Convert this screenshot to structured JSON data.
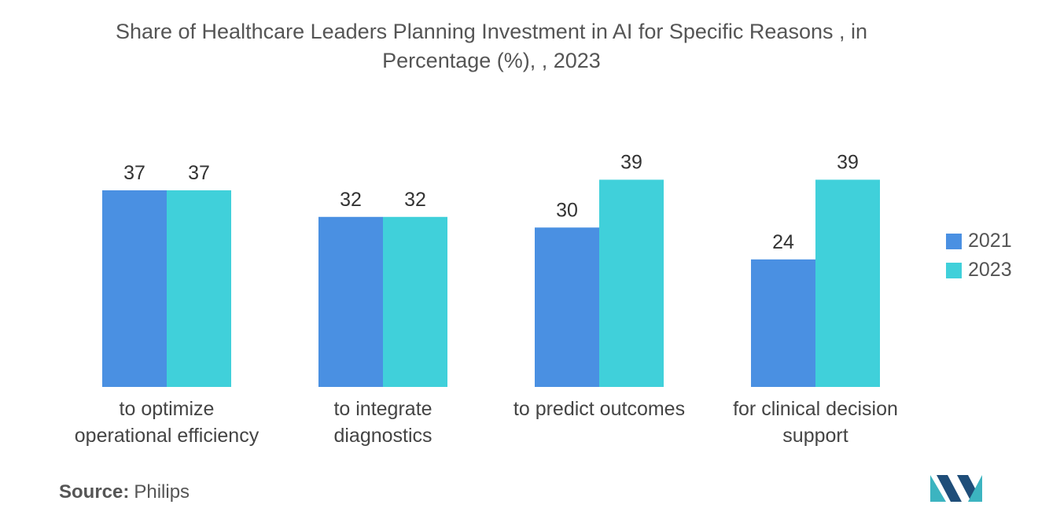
{
  "title_lines": [
    "Share of Healthcare Leaders Planning Investment in AI for Specific Reasons , in",
    "Percentage (%), , 2023"
  ],
  "source": {
    "label": "Source:",
    "value": "Philips"
  },
  "colors": {
    "s2021": "#4a90e2",
    "s2023": "#40d0da",
    "text": "#555555",
    "logo_dark": "#1f4e79",
    "logo_light": "#3cb4c0"
  },
  "logo_icon": "mordor-logo-icon",
  "chart_data": {
    "type": "bar",
    "title": "Share of Healthcare Leaders Planning Investment in AI for Specific Reasons , in Percentage (%), , 2023",
    "categories": [
      [
        "to optimize",
        "operational efficiency"
      ],
      [
        "to integrate",
        "diagnostics"
      ],
      [
        "to predict outcomes"
      ],
      [
        "for clinical decision",
        "support"
      ]
    ],
    "series": [
      {
        "name": "2021",
        "values": [
          37,
          32,
          30,
          24
        ]
      },
      {
        "name": "2023",
        "values": [
          37,
          32,
          39,
          39
        ]
      }
    ],
    "xlabel": "",
    "ylabel": "",
    "ylim": [
      0,
      40
    ],
    "legend": "right",
    "grid": false
  }
}
